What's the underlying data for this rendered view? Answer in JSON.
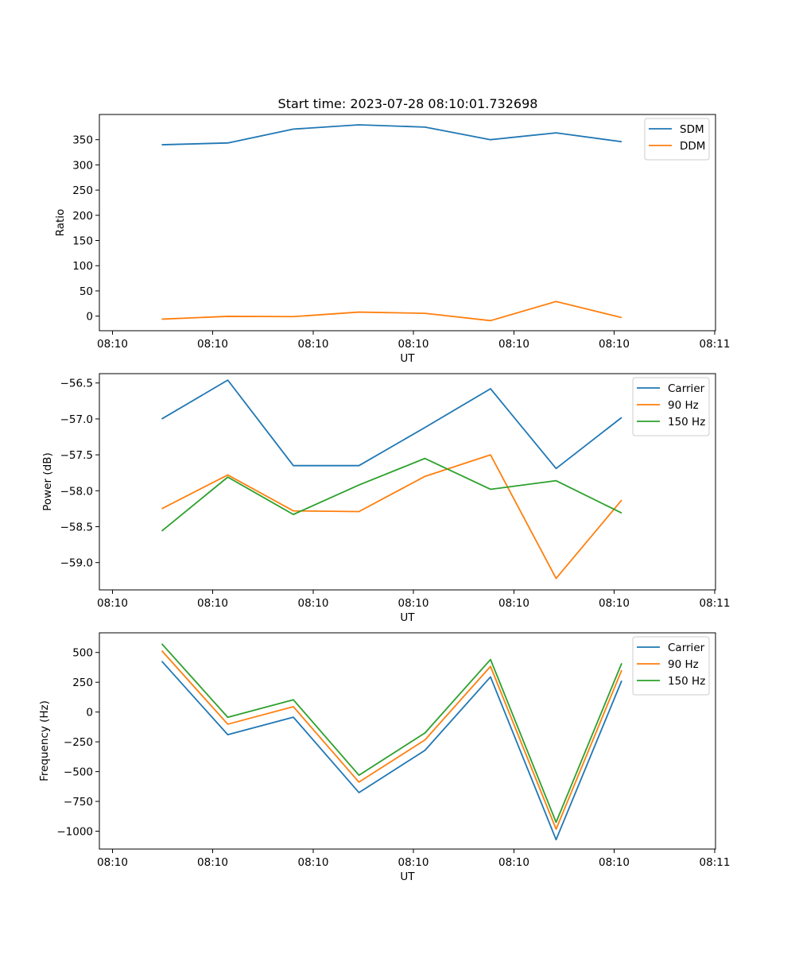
{
  "title": "Start time: 2023-07-28 08:10:01.732698",
  "colors": {
    "blue": "#1f77b4",
    "orange": "#ff7f0e",
    "green": "#2ca02c"
  },
  "chart_data": [
    {
      "type": "line",
      "title": "Start time: 2023-07-28 08:10:01.732698",
      "xlabel": "UT",
      "ylabel": "Ratio",
      "x_tick_labels": [
        "08:10",
        "08:10",
        "08:10",
        "08:10",
        "08:10",
        "08:10",
        "08:11"
      ],
      "y_ticks": [
        0,
        50,
        100,
        150,
        200,
        250,
        300,
        350
      ],
      "y_tick_labels": [
        "0",
        "50",
        "100",
        "150",
        "200",
        "250",
        "300",
        "350"
      ],
      "ylim": [
        -29,
        400
      ],
      "legend_position": "upper-right",
      "series": [
        {
          "name": "SDM",
          "color": "#1f77b4",
          "values": [
            340,
            343.5,
            371,
            379.5,
            375,
            350,
            363.5,
            346
          ]
        },
        {
          "name": "DDM",
          "color": "#ff7f0e",
          "values": [
            -6,
            -0.5,
            -1,
            8,
            5.5,
            -9,
            29,
            -3
          ]
        }
      ]
    },
    {
      "type": "line",
      "xlabel": "UT",
      "ylabel": "Power (dB)",
      "x_tick_labels": [
        "08:10",
        "08:10",
        "08:10",
        "08:10",
        "08:10",
        "08:10",
        "08:11"
      ],
      "y_ticks": [
        -59.0,
        -58.5,
        -58.0,
        -57.5,
        -57.0,
        -56.5
      ],
      "y_tick_labels": [
        "−59.0",
        "−58.5",
        "−58.0",
        "−57.5",
        "−57.0",
        "−56.5"
      ],
      "ylim": [
        -59.38,
        -56.37
      ],
      "legend_position": "upper-right",
      "series": [
        {
          "name": "Carrier",
          "color": "#1f77b4",
          "values": [
            -57.0,
            -56.46,
            -57.65,
            -57.65,
            -57.12,
            -56.58,
            -57.69,
            -56.98
          ]
        },
        {
          "name": "90 Hz",
          "color": "#ff7f0e",
          "values": [
            -58.25,
            -57.78,
            -58.28,
            -58.29,
            -57.8,
            -57.5,
            -59.22,
            -58.13
          ]
        },
        {
          "name": "150 Hz",
          "color": "#2ca02c",
          "values": [
            -58.56,
            -57.81,
            -58.33,
            -57.92,
            -57.55,
            -57.98,
            -57.86,
            -58.31
          ]
        }
      ]
    },
    {
      "type": "line",
      "xlabel": "UT",
      "ylabel": "Frequency (Hz)",
      "x_tick_labels": [
        "08:10",
        "08:10",
        "08:10",
        "08:10",
        "08:10",
        "08:10",
        "08:11"
      ],
      "y_ticks": [
        -1000,
        -750,
        -500,
        -250,
        0,
        250,
        500
      ],
      "y_tick_labels": [
        "−1000",
        "−750",
        "−500",
        "−250",
        "0",
        "250",
        "500"
      ],
      "ylim": [
        -1150,
        665
      ],
      "legend_position": "upper-right",
      "series": [
        {
          "name": "Carrier",
          "color": "#1f77b4",
          "values": [
            427,
            -190,
            -43,
            -676,
            -322,
            295,
            -1071,
            263
          ]
        },
        {
          "name": "90 Hz",
          "color": "#ff7f0e",
          "values": [
            515,
            -102,
            45,
            -588,
            -234,
            383,
            -983,
            351
          ]
        },
        {
          "name": "150 Hz",
          "color": "#2ca02c",
          "values": [
            573,
            -44,
            103,
            -530,
            -176,
            441,
            -925,
            409
          ]
        }
      ]
    }
  ]
}
